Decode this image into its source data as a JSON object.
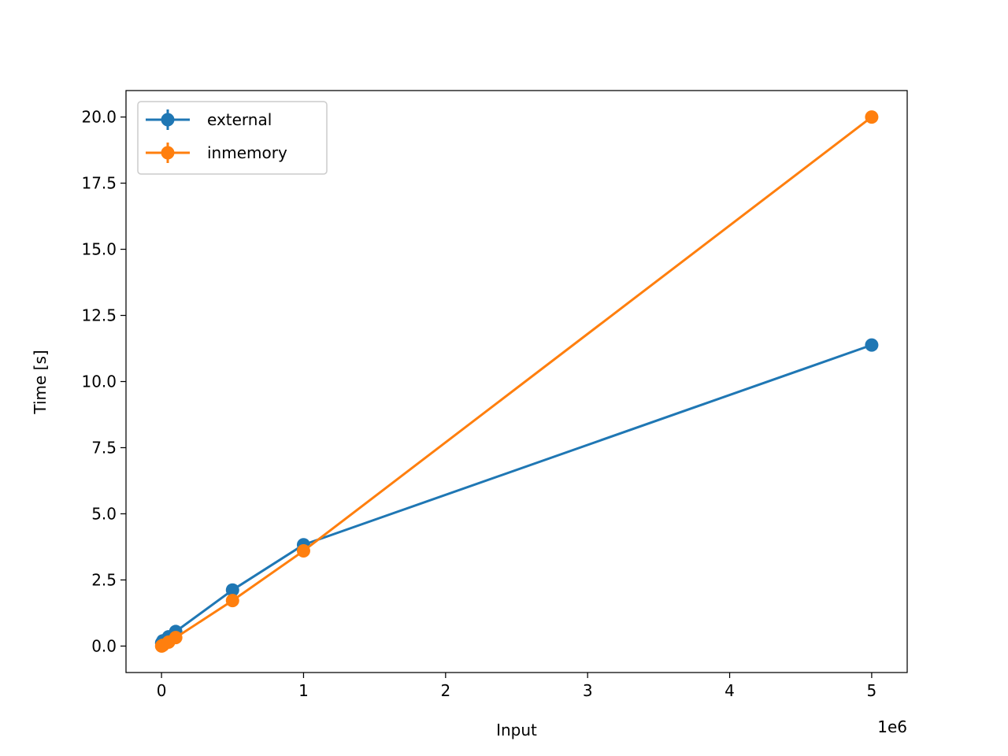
{
  "chart_data": {
    "type": "line",
    "title": "",
    "xlabel": "Input",
    "ylabel": "Time [s]",
    "x_offset_label": "1e6",
    "xlim": [
      -250000,
      5250000
    ],
    "ylim": [
      -1.0,
      21.0
    ],
    "x_ticks": [
      0,
      1000000,
      2000000,
      3000000,
      4000000,
      5000000
    ],
    "x_tick_labels": [
      "0",
      "1",
      "2",
      "3",
      "4",
      "5"
    ],
    "y_ticks": [
      0.0,
      2.5,
      5.0,
      7.5,
      10.0,
      12.5,
      15.0,
      17.5,
      20.0
    ],
    "y_tick_labels": [
      "0.0",
      "2.5",
      "5.0",
      "7.5",
      "10.0",
      "12.5",
      "15.0",
      "17.5",
      "20.0"
    ],
    "grid": false,
    "legend_position": "upper left",
    "series": [
      {
        "name": "external",
        "color": "#1f77b4",
        "x": [
          1000,
          10000,
          50000,
          100000,
          500000,
          1000000,
          5000000
        ],
        "y": [
          0.12,
          0.2,
          0.35,
          0.55,
          2.12,
          3.83,
          11.38
        ]
      },
      {
        "name": "inmemory",
        "color": "#ff7f0e",
        "x": [
          1000,
          10000,
          50000,
          100000,
          500000,
          1000000,
          5000000
        ],
        "y": [
          0.0,
          0.03,
          0.15,
          0.32,
          1.72,
          3.6,
          20.0
        ]
      }
    ]
  }
}
